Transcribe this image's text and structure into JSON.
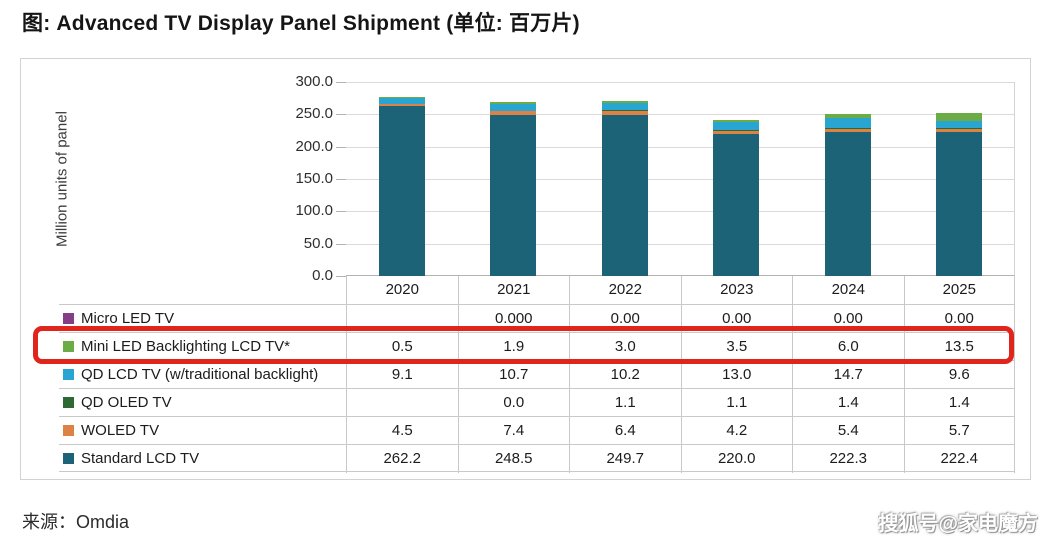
{
  "page": {
    "title": "图: Advanced TV Display Panel Shipment (单位: 百万片)",
    "source": "来源：Omdia",
    "watermark": "搜狐号@家电魔方"
  },
  "chart_data": {
    "type": "bar",
    "stacked": true,
    "title": "Advanced TV Display Panel Shipment",
    "ylabel": "Million units of panel",
    "xlabel": "",
    "ylim": [
      0,
      300
    ],
    "yticks": [
      "300.0",
      "250.0",
      "200.0",
      "150.0",
      "100.0",
      "50.0",
      "0.0"
    ],
    "grid": true,
    "legend_position": "table-left",
    "categories": [
      "2020",
      "2021",
      "2022",
      "2023",
      "2024",
      "2025"
    ],
    "series": [
      {
        "name": "Standard LCD TV",
        "color": "#1c6377",
        "values": [
          262.2,
          248.5,
          249.7,
          220.0,
          222.3,
          222.4
        ]
      },
      {
        "name": "WOLED TV",
        "color": "#dd8145",
        "values": [
          4.5,
          7.4,
          6.4,
          4.2,
          5.4,
          5.7
        ]
      },
      {
        "name": "QD OLED TV",
        "color": "#2d6a33",
        "values": [
          0,
          0.0,
          1.1,
          1.1,
          1.4,
          1.4
        ]
      },
      {
        "name": "QD LCD TV (w/traditional backlight)",
        "color": "#29a5d2",
        "values": [
          9.1,
          10.7,
          10.2,
          13.0,
          14.7,
          9.6
        ]
      },
      {
        "name": "Mini LED Backlighting LCD TV*",
        "color": "#6cac47",
        "values": [
          0.5,
          1.9,
          3.0,
          3.5,
          6.0,
          13.5
        ]
      },
      {
        "name": "Micro LED TV",
        "color": "#863d88",
        "values": [
          0,
          0,
          0,
          0,
          0,
          0
        ]
      }
    ]
  },
  "table": {
    "rows": [
      {
        "label": "Micro LED TV",
        "color": "#863d88",
        "highlighted": false,
        "values": [
          "",
          "0.000",
          "0.00",
          "0.00",
          "0.00",
          "0.00"
        ]
      },
      {
        "label": "Mini LED Backlighting LCD TV*",
        "color": "#6cac47",
        "highlighted": true,
        "values": [
          "0.5",
          "1.9",
          "3.0",
          "3.5",
          "6.0",
          "13.5"
        ]
      },
      {
        "label": "QD LCD TV (w/traditional backlight)",
        "color": "#29a5d2",
        "highlighted": false,
        "values": [
          "9.1",
          "10.7",
          "10.2",
          "13.0",
          "14.7",
          "9.6"
        ]
      },
      {
        "label": "QD OLED TV",
        "color": "#2d6a33",
        "highlighted": false,
        "values": [
          "",
          "0.0",
          "1.1",
          "1.1",
          "1.4",
          "1.4"
        ]
      },
      {
        "label": "WOLED TV",
        "color": "#dd8145",
        "highlighted": false,
        "values": [
          "4.5",
          "7.4",
          "6.4",
          "4.2",
          "5.4",
          "5.7"
        ]
      },
      {
        "label": "Standard LCD TV",
        "color": "#1c6377",
        "highlighted": false,
        "values": [
          "262.2",
          "248.5",
          "249.7",
          "220.0",
          "222.3",
          "222.4"
        ]
      }
    ]
  },
  "colors": {
    "highlight_box": "#e0251c",
    "gridline": "#dadada",
    "axis": "#b3b3b3",
    "table_border": "#c9c9c9"
  }
}
